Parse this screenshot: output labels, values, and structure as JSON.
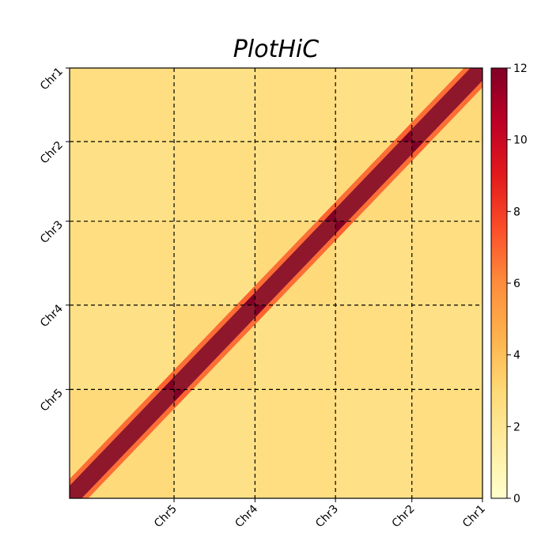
{
  "chart_data": {
    "type": "heatmap",
    "title": "PlotHiC",
    "chromosomes_y_top_to_bottom": [
      "Chr1",
      "Chr2",
      "Chr3",
      "Chr4",
      "Chr5"
    ],
    "chromosomes_x_right_to_left": [
      "Chr1",
      "Chr2",
      "Chr3",
      "Chr4",
      "Chr5"
    ],
    "x_tick_labels": [
      "Chr5",
      "Chr4",
      "Chr3",
      "Chr2",
      "Chr1"
    ],
    "y_tick_labels": [
      "Chr1",
      "Chr2",
      "Chr3",
      "Chr4",
      "Chr5"
    ],
    "boundary_positions": [
      0,
      0.171,
      0.356,
      0.551,
      0.747,
      1.0
    ],
    "boundary_line_style": "dashed",
    "colorbar": {
      "min": 0,
      "max": 12,
      "ticks": [
        0,
        2,
        4,
        6,
        8,
        10,
        12
      ],
      "colormap": "YlOrRd",
      "colors": [
        "#ffffcc",
        "#ffeda0",
        "#fed976",
        "#feb24c",
        "#fd8d3c",
        "#fc4e2a",
        "#e31a1c",
        "#bd0026",
        "#800026"
      ]
    },
    "diagonal_value": 12,
    "background_value": 2.5,
    "grid": false,
    "colorbar_placement": "right"
  }
}
